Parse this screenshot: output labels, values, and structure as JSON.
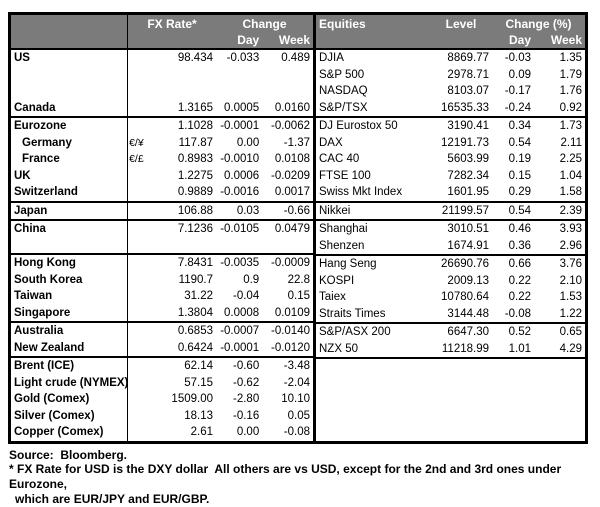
{
  "colors": {
    "header_bg": "#7b7b7b",
    "header_text": "#ffffff",
    "border": "#000000",
    "text": "#000000"
  },
  "fx": {
    "header": {
      "rate": "FX Rate*",
      "change": "Change",
      "day": "Day",
      "week": "Week"
    },
    "groups": [
      {
        "rows": [
          {
            "name": "US",
            "pair": "",
            "rate": "98.434",
            "day": "-0.033",
            "week": "0.489"
          },
          {
            "name": "",
            "pair": "",
            "rate": "",
            "day": "",
            "week": ""
          },
          {
            "name": "",
            "pair": "",
            "rate": "",
            "day": "",
            "week": ""
          },
          {
            "name": "Canada",
            "pair": "",
            "rate": "1.3165",
            "day": "0.0005",
            "week": "0.0160"
          }
        ]
      },
      {
        "rows": [
          {
            "name": "Eurozone",
            "pair": "",
            "rate": "1.1028",
            "day": "-0.0001",
            "week": "-0.0062"
          },
          {
            "name": "Germany",
            "indent": true,
            "pair": "€/¥",
            "rate": "117.87",
            "day": "0.00",
            "week": "-1.37"
          },
          {
            "name": "France",
            "indent": true,
            "pair": "€/£",
            "rate": "0.8983",
            "day": "-0.0010",
            "week": "0.0108"
          },
          {
            "name": "UK",
            "pair": "",
            "rate": "1.2275",
            "day": "0.0006",
            "week": "-0.0209"
          },
          {
            "name": "Switzerland",
            "pair": "",
            "rate": "0.9889",
            "day": "-0.0016",
            "week": "0.0017"
          }
        ]
      },
      {
        "rows": [
          {
            "name": "Japan",
            "pair": "",
            "rate": "106.88",
            "day": "0.03",
            "week": "-0.66"
          }
        ]
      },
      {
        "rows": [
          {
            "name": "China",
            "pair": "",
            "rate": "7.1236",
            "day": "-0.0105",
            "week": "0.0479"
          },
          {
            "name": "",
            "pair": "",
            "rate": "",
            "day": "",
            "week": ""
          }
        ]
      },
      {
        "rows": [
          {
            "name": "Hong Kong",
            "pair": "",
            "rate": "7.8431",
            "day": "-0.0035",
            "week": "-0.0009"
          },
          {
            "name": "South Korea",
            "pair": "",
            "rate": "1190.7",
            "day": "0.9",
            "week": "22.8"
          },
          {
            "name": "Taiwan",
            "pair": "",
            "rate": "31.22",
            "day": "-0.04",
            "week": "0.15"
          },
          {
            "name": "Singapore",
            "pair": "",
            "rate": "1.3804",
            "day": "0.0008",
            "week": "0.0109"
          }
        ]
      },
      {
        "rows": [
          {
            "name": "Australia",
            "pair": "",
            "rate": "0.6853",
            "day": "-0.0007",
            "week": "-0.0140"
          },
          {
            "name": "New Zealand",
            "pair": "",
            "rate": "0.6424",
            "day": "-0.0001",
            "week": "-0.0120"
          }
        ]
      },
      {
        "rows": [
          {
            "name": "Brent (ICE)",
            "pair": "",
            "rate": "62.14",
            "day": "-0.60",
            "week": "-3.48"
          },
          {
            "name": "Light crude (NYMEX)",
            "pair": "",
            "rate": "57.15",
            "day": "-0.62",
            "week": "-2.04"
          },
          {
            "name": "Gold (Comex)",
            "pair": "",
            "rate": "1509.00",
            "day": "-2.80",
            "week": "10.10"
          },
          {
            "name": "Silver (Comex)",
            "pair": "",
            "rate": "18.13",
            "day": "-0.16",
            "week": "0.05"
          },
          {
            "name": "Copper (Comex)",
            "pair": "",
            "rate": "2.61",
            "day": "0.00",
            "week": "-0.08"
          }
        ]
      }
    ]
  },
  "equities": {
    "header": {
      "name": "Equities",
      "level": "Level",
      "change": "Change (%)",
      "day": "Day",
      "week": "Week"
    },
    "groups": [
      {
        "rows": [
          {
            "name": "DJIA",
            "level": "8869.77",
            "day": "-0.03",
            "week": "1.35"
          },
          {
            "name": "S&P 500",
            "level": "2978.71",
            "day": "0.09",
            "week": "1.79"
          },
          {
            "name": "NASDAQ",
            "level": "8103.07",
            "day": "-0.17",
            "week": "1.76"
          },
          {
            "name": "S&P/TSX",
            "level": "16535.33",
            "day": "-0.24",
            "week": "0.92"
          }
        ]
      },
      {
        "rows": [
          {
            "name": "DJ Eurostox 50",
            "level": "3190.41",
            "day": "0.34",
            "week": "1.73"
          },
          {
            "name": "DAX",
            "level": "12191.73",
            "day": "0.54",
            "week": "2.11"
          },
          {
            "name": "CAC 40",
            "level": "5603.99",
            "day": "0.19",
            "week": "2.25"
          },
          {
            "name": "FTSE 100",
            "level": "7282.34",
            "day": "0.15",
            "week": "1.04"
          },
          {
            "name": "Swiss Mkt Index",
            "level": "1601.95",
            "day": "0.29",
            "week": "1.58"
          }
        ]
      },
      {
        "rows": [
          {
            "name": "Nikkei",
            "level": "21199.57",
            "day": "0.54",
            "week": "2.39"
          }
        ]
      },
      {
        "rows": [
          {
            "name": "Shanghai",
            "level": "3010.51",
            "day": "0.46",
            "week": "3.93"
          },
          {
            "name": "Shenzen",
            "level": "1674.91",
            "day": "0.36",
            "week": "2.96"
          }
        ]
      },
      {
        "rows": [
          {
            "name": "Hang Seng",
            "level": "26690.76",
            "day": "0.66",
            "week": "3.76"
          },
          {
            "name": "KOSPI",
            "level": "2009.13",
            "day": "0.22",
            "week": "2.10"
          },
          {
            "name": "Taiex",
            "level": "10780.64",
            "day": "0.22",
            "week": "1.53"
          },
          {
            "name": "Straits Times",
            "level": "3144.48",
            "day": "-0.08",
            "week": "1.22"
          }
        ]
      },
      {
        "rows": [
          {
            "name": "S&P/ASX 200",
            "level": "6647.30",
            "day": "0.52",
            "week": "0.65"
          },
          {
            "name": "NZX 50",
            "level": "11218.99",
            "day": "1.01",
            "week": "4.29"
          }
        ]
      },
      {
        "rows": [
          {
            "name": "",
            "level": "",
            "day": "",
            "week": ""
          },
          {
            "name": "",
            "level": "",
            "day": "",
            "week": ""
          },
          {
            "name": "",
            "level": "",
            "day": "",
            "week": ""
          },
          {
            "name": "",
            "level": "",
            "day": "",
            "week": ""
          },
          {
            "name": "",
            "level": "",
            "day": "",
            "week": ""
          }
        ]
      }
    ]
  },
  "footer": {
    "source": "Source:  Bloomberg.",
    "note_line1": "* FX Rate for USD is the DXY dollar  All others are vs USD, except for the 2nd and 3rd ones under Eurozone,",
    "note_line2": "which are EUR/JPY and EUR/GBP."
  }
}
